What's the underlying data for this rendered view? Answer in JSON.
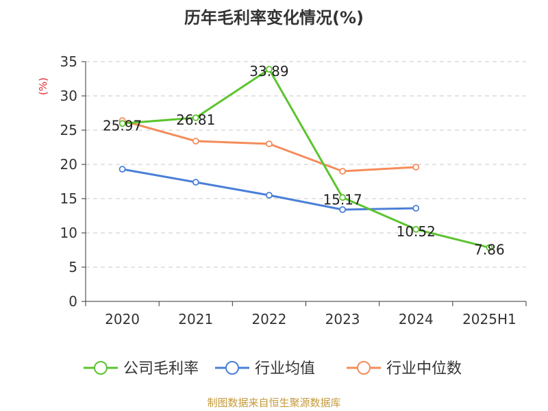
{
  "chart_data": {
    "type": "line",
    "title": "历年毛利率变化情况(%)",
    "ylabel": "(%)",
    "ylim": [
      0,
      35
    ],
    "yticks": [
      0,
      5,
      10,
      15,
      20,
      25,
      30,
      35
    ],
    "grid": "horizontal dashed",
    "legend_position": "bottom",
    "categories": [
      "2020",
      "2021",
      "2022",
      "2023",
      "2024",
      "2025H1"
    ],
    "series": [
      {
        "name": "公司毛利率",
        "color": "#5cc32f",
        "values": [
          25.97,
          26.81,
          33.89,
          15.17,
          10.52,
          7.86
        ],
        "labels": [
          "25.97",
          "26.81",
          "33.89",
          "15.17",
          "10.52",
          "7.86"
        ]
      },
      {
        "name": "行业均值",
        "color": "#4a7fd8",
        "values": [
          19.3,
          17.4,
          15.5,
          13.4,
          13.6,
          null
        ]
      },
      {
        "name": "行业中位数",
        "color": "#f58c5a",
        "values": [
          26.4,
          23.4,
          23.0,
          19.0,
          19.6,
          null
        ]
      }
    ]
  },
  "footer": {
    "source": "制图数据来自恒生聚源数据库"
  }
}
